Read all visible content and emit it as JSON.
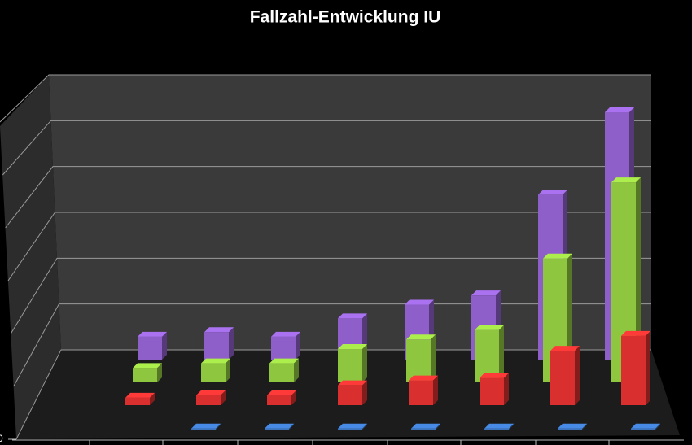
{
  "chart_data": {
    "type": "bar3d",
    "title": "Fallzahl-Entwicklung IU",
    "categories": [
      null,
      null,
      null,
      null,
      null,
      null,
      null,
      null
    ],
    "series": [
      {
        "color": "#8e5fc9",
        "values": [
          0.5,
          0.6,
          0.5,
          0.9,
          1.2,
          1.4,
          3.6,
          5.4
        ]
      },
      {
        "color": "#8fc63f",
        "values": [
          0.3,
          0.4,
          0.4,
          0.7,
          0.9,
          1.1,
          2.6,
          4.2
        ]
      },
      {
        "color": "#d9302f",
        "values": [
          0.15,
          0.2,
          0.2,
          0.4,
          0.5,
          0.55,
          1.1,
          1.4
        ]
      },
      {
        "color": "#3b74c0",
        "values": [
          null,
          0.02,
          0.02,
          0.02,
          0.02,
          0.02,
          0.02,
          0.02
        ]
      }
    ],
    "ylim": [
      0,
      6
    ],
    "yticks": [
      0
    ],
    "gridlines": [
      0,
      1,
      2,
      3,
      4,
      5,
      6
    ],
    "grid": true
  }
}
